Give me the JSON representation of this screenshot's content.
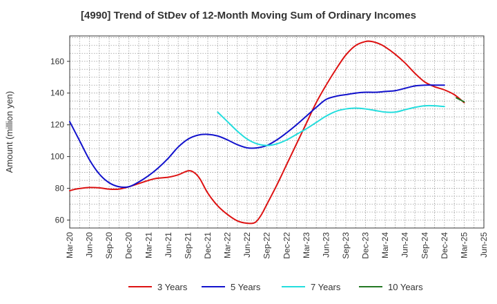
{
  "chart_data": {
    "type": "line",
    "title": "[4990]  Trend of StDev of 12-Month Moving Sum of Ordinary Incomes",
    "xlabel": "",
    "ylabel": "Amount (million yen)",
    "ylim": [
      55,
      176
    ],
    "yticks": [
      60,
      80,
      100,
      120,
      140,
      160
    ],
    "categories": [
      "Mar-20",
      "Jun-20",
      "Sep-20",
      "Dec-20",
      "Mar-21",
      "Jun-21",
      "Sep-21",
      "Dec-21",
      "Mar-22",
      "Jun-22",
      "Sep-22",
      "Dec-22",
      "Mar-23",
      "Jun-23",
      "Sep-23",
      "Dec-23",
      "Mar-24",
      "Jun-24",
      "Sep-24",
      "Dec-24",
      "Mar-25",
      "Jun-25"
    ],
    "grid": true,
    "legend_position": "bottom",
    "series": [
      {
        "name": "3 Years",
        "color": "#dd1111",
        "points": [
          [
            0,
            78.5
          ],
          [
            0.3,
            79.5
          ],
          [
            0.7,
            80.2
          ],
          [
            1,
            80.5
          ],
          [
            1.5,
            80.3
          ],
          [
            2,
            79.5
          ],
          [
            2.4,
            79.4
          ],
          [
            2.7,
            80
          ],
          [
            3,
            81
          ],
          [
            3.5,
            83
          ],
          [
            4,
            85
          ],
          [
            4.4,
            86.3
          ],
          [
            5,
            87
          ],
          [
            5.5,
            88.5
          ],
          [
            6,
            91
          ],
          [
            6.3,
            90
          ],
          [
            6.6,
            86
          ],
          [
            7,
            77
          ],
          [
            7.5,
            69
          ],
          [
            8,
            63.5
          ],
          [
            8.5,
            59.5
          ],
          [
            9,
            58
          ],
          [
            9.4,
            58.5
          ],
          [
            9.7,
            63
          ],
          [
            10,
            70
          ],
          [
            10.5,
            82
          ],
          [
            11,
            95
          ],
          [
            11.5,
            108
          ],
          [
            12,
            121
          ],
          [
            12.5,
            134
          ],
          [
            13,
            145
          ],
          [
            13.5,
            155
          ],
          [
            14,
            164
          ],
          [
            14.5,
            170
          ],
          [
            15,
            172.5
          ],
          [
            15.3,
            172.5
          ],
          [
            15.7,
            171
          ],
          [
            16,
            169
          ],
          [
            16.5,
            164.5
          ],
          [
            17,
            159
          ],
          [
            17.5,
            152.5
          ],
          [
            18,
            147
          ],
          [
            18.5,
            144
          ],
          [
            19,
            142
          ],
          [
            19.5,
            139
          ],
          [
            20,
            134
          ]
        ]
      },
      {
        "name": "5 Years",
        "color": "#1111cc",
        "points": [
          [
            0,
            122
          ],
          [
            0.5,
            110
          ],
          [
            1,
            98
          ],
          [
            1.5,
            89
          ],
          [
            2,
            83.5
          ],
          [
            2.5,
            81
          ],
          [
            3,
            81
          ],
          [
            3.5,
            84
          ],
          [
            4,
            88
          ],
          [
            4.5,
            93
          ],
          [
            5,
            99
          ],
          [
            5.5,
            106
          ],
          [
            6,
            111
          ],
          [
            6.5,
            113.5
          ],
          [
            7,
            114
          ],
          [
            7.5,
            113
          ],
          [
            8,
            110.5
          ],
          [
            8.5,
            107.5
          ],
          [
            9,
            105.5
          ],
          [
            9.5,
            105.5
          ],
          [
            10,
            107
          ],
          [
            10.5,
            110.5
          ],
          [
            11,
            115
          ],
          [
            11.5,
            120
          ],
          [
            12,
            125.5
          ],
          [
            12.5,
            131
          ],
          [
            13,
            136
          ],
          [
            13.5,
            138
          ],
          [
            14,
            139
          ],
          [
            14.5,
            140
          ],
          [
            15,
            140.5
          ],
          [
            15.5,
            140.5
          ],
          [
            16,
            141
          ],
          [
            16.5,
            141.5
          ],
          [
            17,
            143
          ],
          [
            17.5,
            144.5
          ],
          [
            18,
            145
          ],
          [
            18.5,
            145
          ],
          [
            19,
            145
          ]
        ]
      },
      {
        "name": "7 Years",
        "color": "#22dddd",
        "points": [
          [
            7.5,
            128
          ],
          [
            8,
            122
          ],
          [
            8.5,
            116
          ],
          [
            9,
            111
          ],
          [
            9.5,
            108
          ],
          [
            10,
            107
          ],
          [
            10.5,
            108
          ],
          [
            11,
            110.5
          ],
          [
            11.5,
            114
          ],
          [
            12,
            117.5
          ],
          [
            12.5,
            121.5
          ],
          [
            13,
            125.5
          ],
          [
            13.5,
            128.5
          ],
          [
            14,
            130
          ],
          [
            14.5,
            130.5
          ],
          [
            15,
            130
          ],
          [
            15.5,
            129
          ],
          [
            16,
            128
          ],
          [
            16.5,
            128
          ],
          [
            17,
            129.5
          ],
          [
            17.5,
            131
          ],
          [
            18,
            132
          ],
          [
            18.5,
            132
          ],
          [
            19,
            131.5
          ]
        ]
      },
      {
        "name": "10 Years",
        "color": "#227722",
        "points": [
          [
            19.6,
            137
          ],
          [
            20,
            134.5
          ]
        ]
      }
    ]
  }
}
